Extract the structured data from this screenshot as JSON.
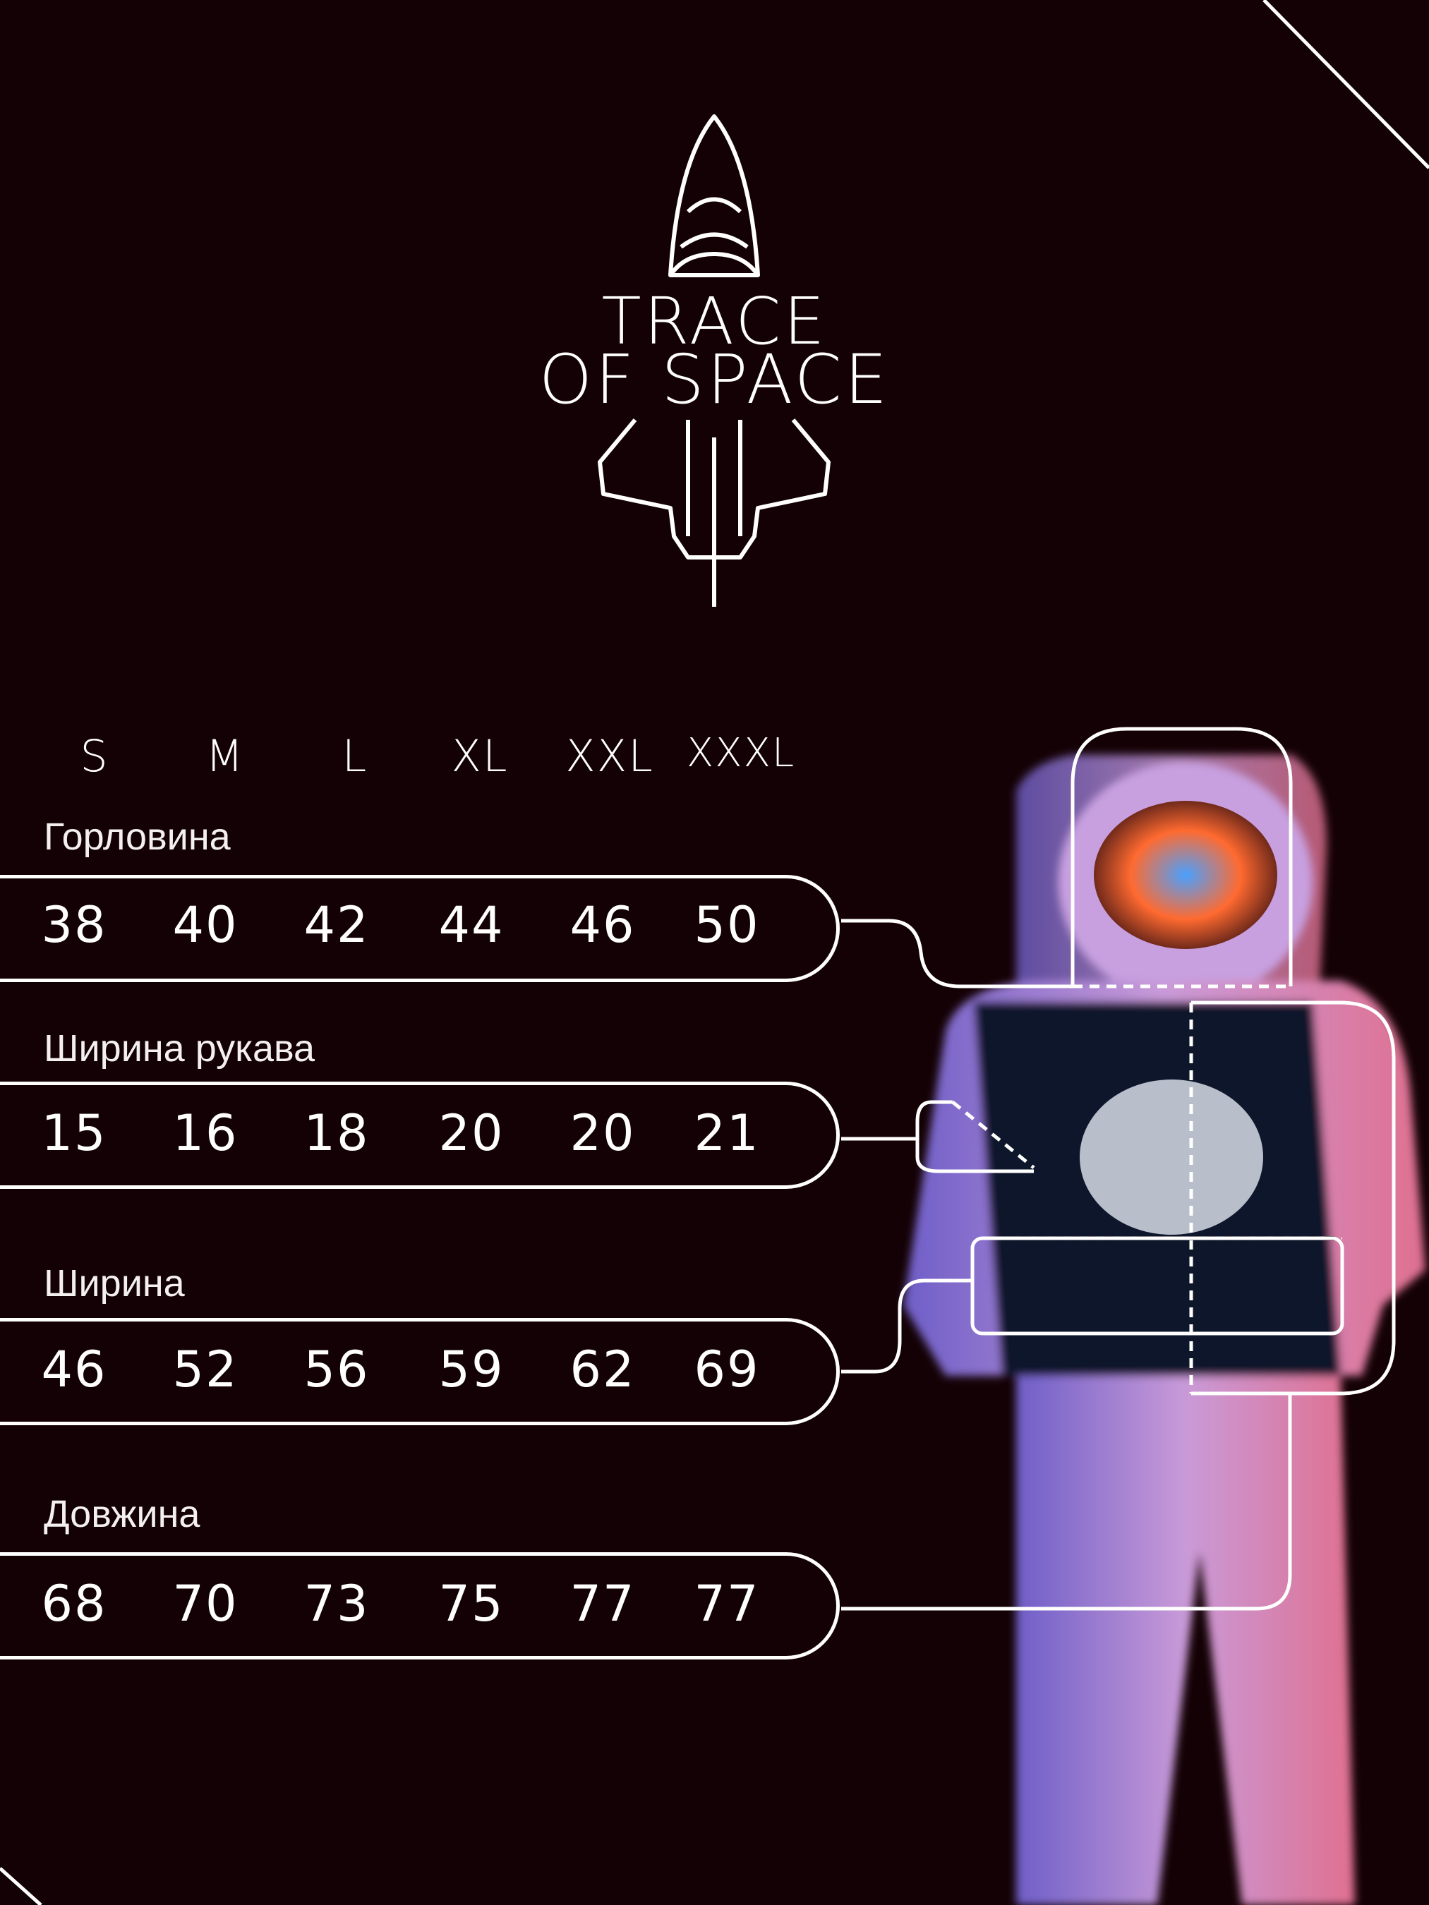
{
  "brand": {
    "line1": "TRACE",
    "line2": "OF SPACE",
    "logo": "rocket-logo-icon"
  },
  "sizes": [
    "S",
    "M",
    "L",
    "XL",
    "XXL",
    "XXXL"
  ],
  "measurements": [
    {
      "label": "Горловина",
      "values": [
        "38",
        "40",
        "42",
        "44",
        "46",
        "50"
      ]
    },
    {
      "label": "Ширина рукава",
      "values": [
        "15",
        "16",
        "18",
        "20",
        "20",
        "21"
      ]
    },
    {
      "label": "Ширина",
      "values": [
        "46",
        "52",
        "56",
        "59",
        "62",
        "69"
      ]
    },
    {
      "label": "Довжина",
      "values": [
        "68",
        "70",
        "73",
        "75",
        "77",
        "77"
      ]
    }
  ],
  "colors": {
    "background": "#140105",
    "lines": "#ffffff"
  }
}
